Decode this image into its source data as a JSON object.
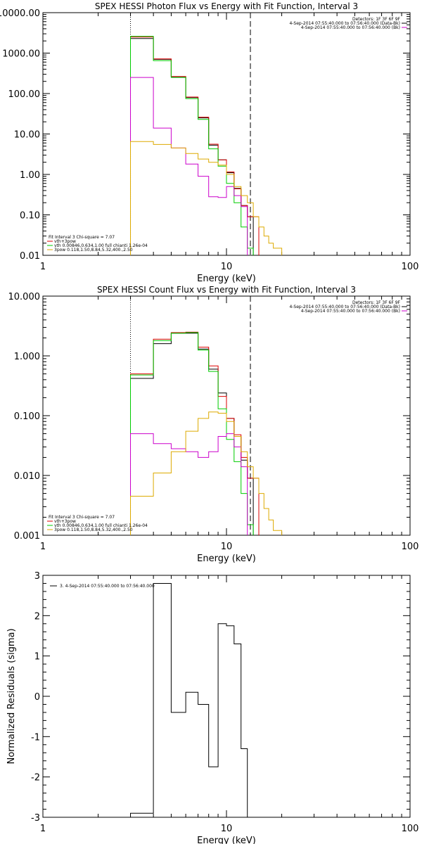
{
  "chart_data": [
    {
      "type": "line",
      "step": true,
      "title": "SPEX HESSI Photon Flux vs Energy with Fit Function, Interval 3",
      "xlabel": "Energy (keV)",
      "ylabel": "",
      "xscale": "log",
      "yscale": "log",
      "xlim": [
        1,
        100
      ],
      "ylim": [
        0.01,
        10000
      ],
      "x_ticks": [
        1,
        10,
        100
      ],
      "x_tick_labels": [
        "1",
        "10",
        "100"
      ],
      "y_ticks": [
        0.01,
        0.1,
        1,
        10,
        100,
        1000,
        10000
      ],
      "y_tick_labels": [
        "0.01",
        "0.10",
        "1.00",
        "10.00",
        "100.00",
        "1000.00",
        "10000.00"
      ],
      "energy_range": [
        3,
        13.5
      ],
      "legend_top_right": [
        {
          "text": "Detectors: 1F 3F 6F 9F",
          "color": ""
        },
        {
          "text": "4-Sep-2014 07:55:40.000 to 07:56:40.000 (Data-Bk)",
          "color": "#000000"
        },
        {
          "text": "4-Sep-2014 07:55:40.000 to 07:56:40.000 (Bk)",
          "color": "#cc00cc"
        }
      ],
      "legend_bottom_left": [
        {
          "text": "Fit Interval 3   Chi-square = 7.07",
          "color": ""
        },
        {
          "text": "vth+3pow",
          "color": "#dd0000"
        },
        {
          "text": "vth 0.00846,0.634,1.00   full chianti 1.26e-04",
          "color": "#00cc00"
        },
        {
          "text": "3pow 0.118,1.50,8.84,5.32,400.,2.50",
          "color": "#ddaa00"
        }
      ],
      "series": [
        {
          "name": "4-Sep-2014 07:55:40.000 to 07:56:40.000 (Data-Bk)",
          "color": "#000000",
          "edges": [
            3,
            4,
            5,
            6,
            7,
            8,
            9,
            10,
            11,
            12,
            13,
            14,
            15,
            16,
            17,
            18,
            20
          ],
          "values": [
            2300,
            700,
            260,
            80,
            25,
            5.3,
            2.3,
            1.1,
            0.45,
            0.17,
            0.09,
            null,
            null,
            null,
            null,
            null
          ]
        },
        {
          "name": "vth+3pow",
          "color": "#dd0000",
          "edges": [
            3,
            4,
            5,
            6,
            7,
            8,
            9,
            10,
            11,
            12,
            13,
            14,
            15,
            16,
            17,
            18,
            20
          ],
          "values": [
            2500,
            720,
            265,
            82,
            26,
            5.6,
            2.3,
            1.15,
            0.44,
            0.17,
            0.09,
            0.09,
            null,
            null,
            null,
            null
          ]
        },
        {
          "name": "vth 0.00846,0.634,1.00   full chianti 1.26e-04",
          "color": "#00cc00",
          "edges": [
            3,
            4,
            5,
            6,
            7,
            8,
            9,
            10,
            11,
            12,
            13,
            14,
            15,
            16,
            17,
            18,
            20
          ],
          "values": [
            2600,
            650,
            250,
            75,
            23,
            4.3,
            1.6,
            0.6,
            0.2,
            0.05,
            0.015,
            null,
            null,
            null,
            null,
            null
          ]
        },
        {
          "name": "4-Sep-2014 07:55:40.000 to 07:56:40.000 (Bk)",
          "color": "#cc00cc",
          "edges": [
            3,
            4,
            5,
            6,
            7,
            8,
            9,
            10,
            11,
            12,
            13,
            14,
            15,
            16,
            17,
            18,
            20
          ],
          "values": [
            250,
            14,
            4.5,
            1.8,
            0.9,
            0.28,
            0.27,
            0.5,
            0.3,
            0.16,
            null,
            null,
            null,
            null,
            null,
            null
          ]
        },
        {
          "name": "3pow 0.118,1.50,8.84,5.32,400.,2.50",
          "color": "#ddaa00",
          "edges": [
            3,
            4,
            5,
            6,
            7,
            8,
            9,
            10,
            11,
            12,
            13,
            14,
            15,
            16,
            17,
            18,
            20
          ],
          "values": [
            6.5,
            5.5,
            4.5,
            3.3,
            2.4,
            2.0,
            1.7,
            1.0,
            0.5,
            0.3,
            0.2,
            0.09,
            0.05,
            0.03,
            0.02,
            0.015
          ]
        }
      ]
    },
    {
      "type": "line",
      "step": true,
      "title": "SPEX HESSI Count Flux vs Energy with Fit Function, Interval 3",
      "xlabel": "Energy (keV)",
      "ylabel": "",
      "xscale": "log",
      "yscale": "log",
      "xlim": [
        1,
        100
      ],
      "ylim": [
        0.001,
        10
      ],
      "x_ticks": [
        1,
        10,
        100
      ],
      "x_tick_labels": [
        "1",
        "10",
        "100"
      ],
      "y_ticks": [
        0.001,
        0.01,
        0.1,
        1,
        10
      ],
      "y_tick_labels": [
        "0.001",
        "0.010",
        "0.100",
        "1.000",
        "10.000"
      ],
      "energy_range": [
        3,
        13.5
      ],
      "legend_top_right": [
        {
          "text": "Detectors: 1F 3F 6F 9F",
          "color": ""
        },
        {
          "text": "4-Sep-2014 07:55:40.000 to 07:56:40.000 (Data-Bk)",
          "color": "#000000"
        },
        {
          "text": "4-Sep-2014 07:55:40.000 to 07:56:40.000 (Bk)",
          "color": "#cc00cc"
        }
      ],
      "legend_bottom_left": [
        {
          "text": "Fit Interval 3   Chi-square = 7.07",
          "color": ""
        },
        {
          "text": "vth+3pow",
          "color": "#dd0000"
        },
        {
          "text": "vth 0.00846,0.634,1.00   full chianti 1.26e-04",
          "color": "#00cc00"
        },
        {
          "text": "3pow 0.118,1.50,8.84,5.32,400.,2.50",
          "color": "#ddaa00"
        }
      ],
      "series": [
        {
          "name": "4-Sep-2014 07:55:40.000 to 07:56:40.000 (Data-Bk)",
          "color": "#000000",
          "edges": [
            3,
            4,
            5,
            6,
            7,
            8,
            9,
            10,
            11,
            12,
            13,
            14,
            15,
            16,
            17,
            18,
            20
          ],
          "values": [
            0.42,
            1.6,
            2.4,
            2.4,
            1.3,
            0.6,
            0.24,
            0.09,
            0.045,
            0.018,
            0.009,
            null,
            null,
            null,
            null,
            null
          ]
        },
        {
          "name": "vth+3pow",
          "color": "#dd0000",
          "edges": [
            3,
            4,
            5,
            6,
            7,
            8,
            9,
            10,
            11,
            12,
            13,
            14,
            15,
            16,
            17,
            18,
            20
          ],
          "values": [
            0.5,
            1.9,
            2.45,
            2.5,
            1.4,
            0.68,
            0.21,
            0.09,
            0.048,
            0.02,
            0.009,
            0.009,
            null,
            null,
            null,
            null
          ]
        },
        {
          "name": "vth 0.00846,0.634,1.00   full chianti 1.26e-04",
          "color": "#00cc00",
          "edges": [
            3,
            4,
            5,
            6,
            7,
            8,
            9,
            10,
            11,
            12,
            13,
            14,
            15,
            16,
            17,
            18,
            20
          ],
          "values": [
            0.48,
            1.8,
            2.4,
            2.45,
            1.25,
            0.55,
            0.13,
            0.04,
            0.017,
            0.005,
            0.0015,
            null,
            null,
            null,
            null,
            null
          ]
        },
        {
          "name": "4-Sep-2014 07:55:40.000 to 07:56:40.000 (Bk)",
          "color": "#cc00cc",
          "edges": [
            3,
            4,
            5,
            6,
            7,
            8,
            9,
            10,
            11,
            12,
            13,
            14,
            15,
            16,
            17,
            18,
            20
          ],
          "values": [
            0.05,
            0.034,
            0.028,
            0.025,
            0.02,
            0.025,
            0.045,
            0.05,
            0.03,
            0.014,
            null,
            null,
            null,
            null,
            null,
            null
          ]
        },
        {
          "name": "3pow 0.118,1.50,8.84,5.32,400.,2.50",
          "color": "#ddaa00",
          "edges": [
            3,
            4,
            5,
            6,
            7,
            8,
            9,
            10,
            11,
            12,
            13,
            14,
            15,
            16,
            17,
            18,
            20
          ],
          "values": [
            0.0045,
            0.011,
            0.025,
            0.055,
            0.09,
            0.115,
            0.11,
            0.08,
            0.045,
            0.025,
            0.014,
            0.009,
            0.005,
            0.0028,
            0.0018,
            0.0012
          ]
        }
      ]
    },
    {
      "type": "line",
      "step": true,
      "title": "",
      "xlabel": "Energy (keV)",
      "ylabel": "Normalized Residuals (sigma)",
      "xscale": "log",
      "yscale": "linear",
      "xlim": [
        1,
        100
      ],
      "ylim": [
        -3,
        3
      ],
      "x_ticks": [
        1,
        10,
        100
      ],
      "x_tick_labels": [
        "1",
        "10",
        "100"
      ],
      "y_ticks": [
        -3,
        -2,
        -1,
        0,
        1,
        2,
        3
      ],
      "y_tick_labels": [
        "-3",
        "-2",
        "-1",
        "0",
        "1",
        "2",
        "3"
      ],
      "legend_top_left": [
        {
          "text": "3.  4-Sep-2014 07:55:40.000 to 07:56:40.000",
          "color": "#000000"
        }
      ],
      "series": [
        {
          "name": "3.  4-Sep-2014 07:55:40.000 to 07:56:40.000",
          "color": "#000000",
          "edges": [
            3,
            4,
            5,
            6,
            7,
            8,
            9,
            10,
            11,
            12,
            13
          ],
          "values": [
            -2.9,
            2.8,
            -0.4,
            0.1,
            -0.2,
            -1.75,
            1.8,
            1.75,
            1.3,
            -1.3
          ]
        }
      ]
    }
  ]
}
